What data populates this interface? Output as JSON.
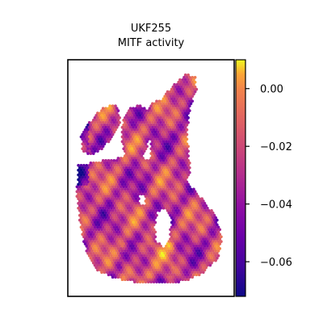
{
  "chart_data": {
    "type": "heatmap",
    "title_line1": "UKF255",
    "title_line2": "MITF activity",
    "xlabel": "",
    "ylabel": "",
    "colorbar": {
      "colormap": "plasma",
      "range": [
        -0.072,
        0.01
      ],
      "ticks": [
        0.0,
        -0.02,
        -0.04,
        -0.06
      ],
      "tick_labels": [
        "0.00",
        "−0.02",
        "−0.04",
        "−0.06"
      ]
    },
    "grid": false,
    "legend": "none"
  }
}
